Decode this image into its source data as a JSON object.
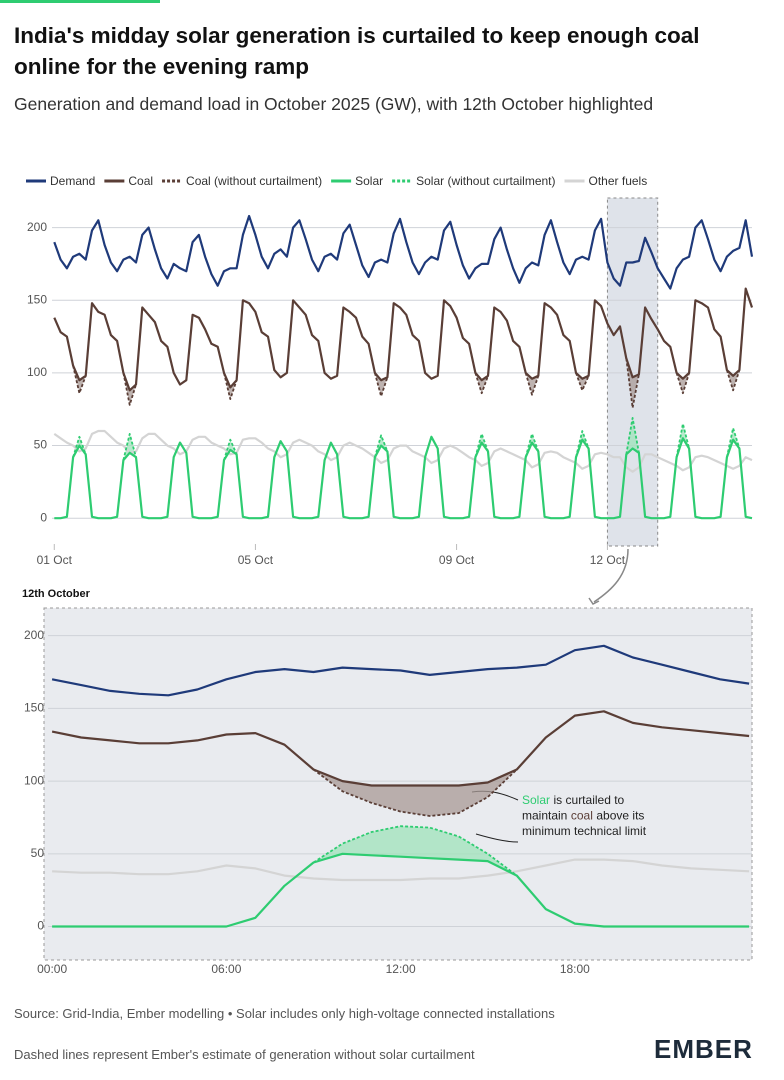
{
  "chart_data": [
    {
      "type": "line",
      "title": "India's midday solar generation is curtailed to keep enough coal online for the evening ramp",
      "subtitle": "Generation and demand load in October 2025 (GW), with 12th October highlighted",
      "legend": true,
      "grid": true,
      "xlim": [
        -3,
        333
      ],
      "ylim": [
        -15,
        219
      ],
      "xticks": [
        {
          "value": 0,
          "label": "01 Oct"
        },
        {
          "value": 96,
          "label": "05 Oct"
        },
        {
          "value": 192,
          "label": "09 Oct"
        },
        {
          "value": 264,
          "label": "12 Oct"
        }
      ],
      "yticks": [
        0,
        50,
        100,
        150,
        200
      ],
      "highlight": {
        "start": 264,
        "end": 288
      },
      "x": [
        0,
        3,
        6,
        9,
        12,
        15,
        18,
        21,
        24,
        27,
        30,
        33,
        36,
        39,
        42,
        45,
        48,
        51,
        54,
        57,
        60,
        63,
        66,
        69,
        72,
        75,
        78,
        81,
        84,
        87,
        90,
        93,
        96,
        99,
        102,
        105,
        108,
        111,
        114,
        117,
        120,
        123,
        126,
        129,
        132,
        135,
        138,
        141,
        144,
        147,
        150,
        153,
        156,
        159,
        162,
        165,
        168,
        171,
        174,
        177,
        180,
        183,
        186,
        189,
        192,
        195,
        198,
        201,
        204,
        207,
        210,
        213,
        216,
        219,
        222,
        225,
        228,
        231,
        234,
        237,
        240,
        243,
        246,
        249,
        252,
        255,
        258,
        261,
        264,
        267,
        270,
        273,
        276,
        279,
        282,
        285,
        288,
        291,
        294,
        297,
        300,
        303,
        306,
        309,
        312,
        315,
        318,
        321,
        324,
        327,
        330,
        333
      ],
      "series": [
        {
          "name": "Demand",
          "color": "#1f3a7a",
          "values": [
            190,
            178,
            172,
            180,
            182,
            178,
            198,
            205,
            188,
            176,
            170,
            178,
            180,
            176,
            195,
            200,
            185,
            172,
            165,
            175,
            172,
            170,
            190,
            195,
            180,
            168,
            160,
            170,
            172,
            172,
            195,
            208,
            195,
            180,
            172,
            182,
            185,
            180,
            200,
            205,
            192,
            178,
            170,
            180,
            182,
            178,
            196,
            202,
            188,
            174,
            166,
            176,
            178,
            176,
            196,
            206,
            190,
            176,
            168,
            176,
            180,
            178,
            198,
            204,
            188,
            174,
            165,
            172,
            175,
            175,
            192,
            200,
            185,
            172,
            162,
            172,
            176,
            174,
            195,
            205,
            190,
            176,
            168,
            178,
            180,
            178,
            198,
            206,
            176,
            165,
            160,
            176,
            176,
            177,
            193,
            183,
            172,
            165,
            158,
            172,
            178,
            180,
            200,
            205,
            192,
            178,
            170,
            180,
            184,
            186,
            205,
            180
          ]
        },
        {
          "name": "Coal",
          "color": "#5a3e36",
          "values": [
            138,
            128,
            125,
            105,
            95,
            98,
            148,
            142,
            140,
            126,
            122,
            100,
            88,
            92,
            145,
            140,
            135,
            122,
            118,
            100,
            92,
            95,
            140,
            138,
            130,
            120,
            118,
            100,
            90,
            95,
            150,
            148,
            142,
            128,
            125,
            102,
            97,
            100,
            150,
            145,
            140,
            126,
            122,
            100,
            96,
            98,
            145,
            142,
            138,
            125,
            120,
            100,
            95,
            97,
            148,
            145,
            140,
            126,
            122,
            100,
            96,
            98,
            150,
            146,
            138,
            124,
            120,
            100,
            95,
            98,
            145,
            142,
            136,
            122,
            118,
            100,
            96,
            98,
            148,
            145,
            140,
            126,
            122,
            100,
            96,
            98,
            150,
            146,
            134,
            126,
            132,
            110,
            97,
            99,
            145,
            137,
            130,
            122,
            118,
            100,
            96,
            100,
            150,
            148,
            145,
            130,
            125,
            102,
            98,
            102,
            158,
            145
          ]
        },
        {
          "name": "Coal (without curtailment)",
          "color": "#5a3e36",
          "dashed": true,
          "fill": "#a89a96",
          "values": [
            null,
            null,
            null,
            105,
            86,
            98,
            null,
            null,
            null,
            null,
            null,
            100,
            78,
            92,
            null,
            null,
            null,
            null,
            null,
            null,
            null,
            null,
            null,
            null,
            null,
            null,
            null,
            100,
            82,
            95,
            null,
            null,
            null,
            null,
            null,
            null,
            null,
            null,
            null,
            null,
            null,
            null,
            null,
            null,
            null,
            null,
            null,
            null,
            null,
            null,
            null,
            100,
            84,
            97,
            null,
            null,
            null,
            null,
            null,
            null,
            null,
            null,
            null,
            null,
            null,
            null,
            null,
            100,
            86,
            98,
            null,
            null,
            null,
            null,
            null,
            100,
            85,
            98,
            null,
            null,
            null,
            null,
            null,
            100,
            88,
            98,
            null,
            null,
            null,
            null,
            null,
            110,
            76,
            99,
            null,
            null,
            null,
            null,
            null,
            100,
            86,
            100,
            null,
            null,
            null,
            null,
            null,
            102,
            88,
            102,
            null,
            null
          ]
        },
        {
          "name": "Solar",
          "color": "#2ecc71",
          "values": [
            0,
            0,
            1,
            42,
            50,
            44,
            1,
            0,
            0,
            0,
            1,
            40,
            45,
            42,
            1,
            0,
            0,
            0,
            1,
            42,
            52,
            45,
            1,
            0,
            0,
            0,
            1,
            40,
            47,
            44,
            1,
            0,
            0,
            0,
            1,
            42,
            53,
            46,
            1,
            0,
            0,
            0,
            1,
            40,
            52,
            44,
            1,
            0,
            0,
            0,
            1,
            42,
            50,
            46,
            1,
            0,
            0,
            0,
            1,
            42,
            56,
            48,
            1,
            0,
            0,
            0,
            1,
            42,
            52,
            46,
            1,
            0,
            0,
            0,
            1,
            42,
            52,
            46,
            1,
            0,
            0,
            0,
            1,
            42,
            54,
            48,
            1,
            0,
            0,
            0,
            1,
            44,
            48,
            45,
            1,
            0,
            0,
            0,
            1,
            42,
            55,
            48,
            1,
            0,
            0,
            0,
            1,
            42,
            54,
            48,
            1,
            0
          ]
        },
        {
          "name": "Solar (without curtailment)",
          "color": "#2ecc71",
          "dashed": true,
          "fill": "#9fe3bb",
          "values": [
            null,
            null,
            null,
            42,
            56,
            44,
            null,
            null,
            null,
            null,
            null,
            40,
            58,
            42,
            null,
            null,
            null,
            null,
            null,
            null,
            null,
            null,
            null,
            null,
            null,
            null,
            null,
            40,
            54,
            44,
            null,
            null,
            null,
            null,
            null,
            null,
            null,
            null,
            null,
            null,
            null,
            null,
            null,
            null,
            null,
            null,
            null,
            null,
            null,
            null,
            null,
            42,
            57,
            46,
            null,
            null,
            null,
            null,
            null,
            null,
            null,
            null,
            null,
            null,
            null,
            null,
            null,
            42,
            58,
            46,
            null,
            null,
            null,
            null,
            null,
            42,
            58,
            46,
            null,
            null,
            null,
            null,
            null,
            42,
            60,
            48,
            null,
            null,
            null,
            null,
            null,
            44,
            69,
            45,
            null,
            null,
            null,
            null,
            null,
            42,
            65,
            48,
            null,
            null,
            null,
            null,
            null,
            42,
            62,
            48,
            null,
            null
          ]
        },
        {
          "name": "Other fuels",
          "color": "#d4d4d4",
          "values": [
            58,
            55,
            52,
            50,
            46,
            48,
            58,
            60,
            60,
            56,
            52,
            50,
            45,
            46,
            55,
            58,
            58,
            54,
            50,
            48,
            44,
            46,
            54,
            56,
            56,
            52,
            50,
            48,
            44,
            45,
            54,
            55,
            55,
            52,
            48,
            46,
            42,
            44,
            52,
            54,
            52,
            50,
            46,
            44,
            40,
            42,
            50,
            52,
            50,
            48,
            45,
            42,
            38,
            40,
            48,
            50,
            50,
            46,
            44,
            42,
            38,
            40,
            48,
            50,
            48,
            45,
            42,
            40,
            36,
            38,
            46,
            48,
            46,
            44,
            42,
            40,
            35,
            37,
            45,
            46,
            45,
            42,
            40,
            38,
            34,
            36,
            44,
            45,
            44,
            42,
            42,
            35,
            32,
            35,
            44,
            44,
            42,
            40,
            38,
            36,
            33,
            35,
            42,
            43,
            42,
            40,
            38,
            36,
            34,
            36,
            42,
            40
          ]
        }
      ]
    },
    {
      "type": "line",
      "title": "12th October",
      "grid": true,
      "xlim": [
        -0.28,
        24.1
      ],
      "ylim": [
        -23,
        219
      ],
      "xticks": [
        {
          "value": 0,
          "label": "00:00"
        },
        {
          "value": 6,
          "label": "06:00"
        },
        {
          "value": 12,
          "label": "12:00"
        },
        {
          "value": 18,
          "label": "18:00"
        }
      ],
      "yticks": [
        0,
        50,
        100,
        150,
        200
      ],
      "x": [
        0,
        1,
        2,
        3,
        4,
        5,
        6,
        7,
        8,
        9,
        10,
        11,
        12,
        13,
        14,
        15,
        16,
        17,
        18,
        19,
        20,
        21,
        22,
        23,
        24
      ],
      "series": [
        {
          "color": "#1f3a7a",
          "values": [
            170,
            166,
            162,
            160,
            159,
            163,
            170,
            175,
            177,
            175,
            178,
            177,
            176,
            173,
            175,
            177,
            178,
            180,
            190,
            193,
            185,
            180,
            175,
            170,
            167
          ]
        },
        {
          "color": "#5a3e36",
          "values": [
            134,
            130,
            128,
            126,
            126,
            128,
            132,
            133,
            125,
            108,
            100,
            97,
            97,
            97,
            97,
            99,
            108,
            130,
            145,
            148,
            140,
            137,
            135,
            133,
            131
          ]
        },
        {
          "color": "#5a3e36",
          "dashed": true,
          "fill": "#a89a96",
          "values": [
            null,
            null,
            null,
            null,
            null,
            null,
            null,
            null,
            null,
            108,
            93,
            85,
            79,
            76,
            78,
            89,
            108,
            null,
            null,
            null,
            null,
            null,
            null,
            null,
            null
          ]
        },
        {
          "color": "#2ecc71",
          "values": [
            0,
            0,
            0,
            0,
            0,
            0,
            0,
            6,
            28,
            44,
            50,
            49,
            48,
            47,
            46,
            45,
            35,
            12,
            2,
            0,
            0,
            0,
            0,
            0,
            0
          ]
        },
        {
          "color": "#2ecc71",
          "dashed": true,
          "fill": "#9fe3bb",
          "values": [
            null,
            null,
            null,
            null,
            null,
            null,
            null,
            null,
            null,
            44,
            57,
            65,
            69,
            68,
            62,
            50,
            35,
            null,
            null,
            null,
            null,
            null,
            null,
            null,
            null
          ]
        },
        {
          "color": "#d4d4d4",
          "values": [
            38,
            37,
            37,
            36,
            36,
            38,
            42,
            40,
            35,
            33,
            32,
            32,
            32,
            33,
            33,
            35,
            38,
            42,
            46,
            46,
            45,
            42,
            40,
            39,
            38
          ]
        }
      ],
      "annotation": [
        [
          {
            "text": "Solar",
            "color": "#2ecc71"
          },
          {
            "text": "is curtailed to"
          }
        ],
        [
          {
            "text": "maintain"
          },
          {
            "text": "coal",
            "color": "#5a3e36"
          },
          {
            "text": "above its"
          }
        ],
        [
          {
            "text": "minimum technical limit"
          }
        ]
      ]
    }
  ],
  "footer": {
    "source": "Source: Grid-India, Ember modelling • Solar includes only high-voltage connected installations",
    "note": "Dashed lines represent Ember's estimate of generation without solar curtailment",
    "logo": "EMBER"
  }
}
